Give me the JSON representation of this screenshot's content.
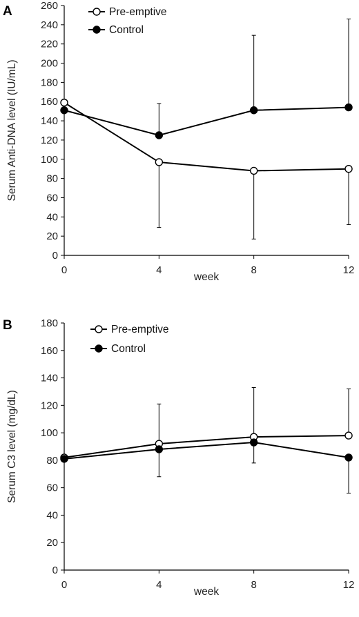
{
  "chart_data": [
    {
      "panel": "A",
      "type": "line",
      "xlabel": "week",
      "ylabel": "Serum Anti-DNA level (IU/mL)",
      "x": [
        0,
        4,
        8,
        12
      ],
      "xticks": [
        "0",
        "4",
        "8",
        "12"
      ],
      "xlim": [
        0,
        12
      ],
      "ylim": [
        0,
        260
      ],
      "yticks": [
        "0",
        "20",
        "40",
        "60",
        "80",
        "100",
        "120",
        "140",
        "160",
        "180",
        "200",
        "220",
        "240",
        "260"
      ],
      "grid": false,
      "legend_position": "top-center",
      "series": [
        {
          "name": "Pre-emptive",
          "marker": "open-circle",
          "values": [
            159,
            97,
            88,
            90
          ],
          "error_minus": [
            0,
            68,
            71,
            58
          ],
          "error_plus": [
            0,
            0,
            0,
            0
          ]
        },
        {
          "name": "Control",
          "marker": "filled-circle",
          "values": [
            151,
            125,
            151,
            154
          ],
          "error_minus": [
            0,
            0,
            0,
            0
          ],
          "error_plus": [
            0,
            33,
            78,
            92
          ]
        }
      ]
    },
    {
      "panel": "B",
      "type": "line",
      "xlabel": "week",
      "ylabel": "Serum C3 level (mg/dL)",
      "x": [
        0,
        4,
        8,
        12
      ],
      "xticks": [
        "0",
        "4",
        "8",
        "12"
      ],
      "xlim": [
        0,
        12
      ],
      "ylim": [
        0,
        180
      ],
      "yticks": [
        "0",
        "20",
        "40",
        "60",
        "80",
        "100",
        "120",
        "140",
        "160",
        "180"
      ],
      "grid": false,
      "legend_position": "top-left",
      "series": [
        {
          "name": "Pre-emptive",
          "marker": "open-circle",
          "values": [
            82,
            92,
            97,
            98
          ],
          "error_minus": [
            0,
            0,
            0,
            0
          ],
          "error_plus": [
            0,
            29,
            36,
            34
          ]
        },
        {
          "name": "Control",
          "marker": "filled-circle",
          "values": [
            81,
            88,
            93,
            82
          ],
          "error_minus": [
            0,
            20,
            15,
            26
          ],
          "error_plus": [
            0,
            0,
            0,
            0
          ]
        }
      ]
    }
  ]
}
